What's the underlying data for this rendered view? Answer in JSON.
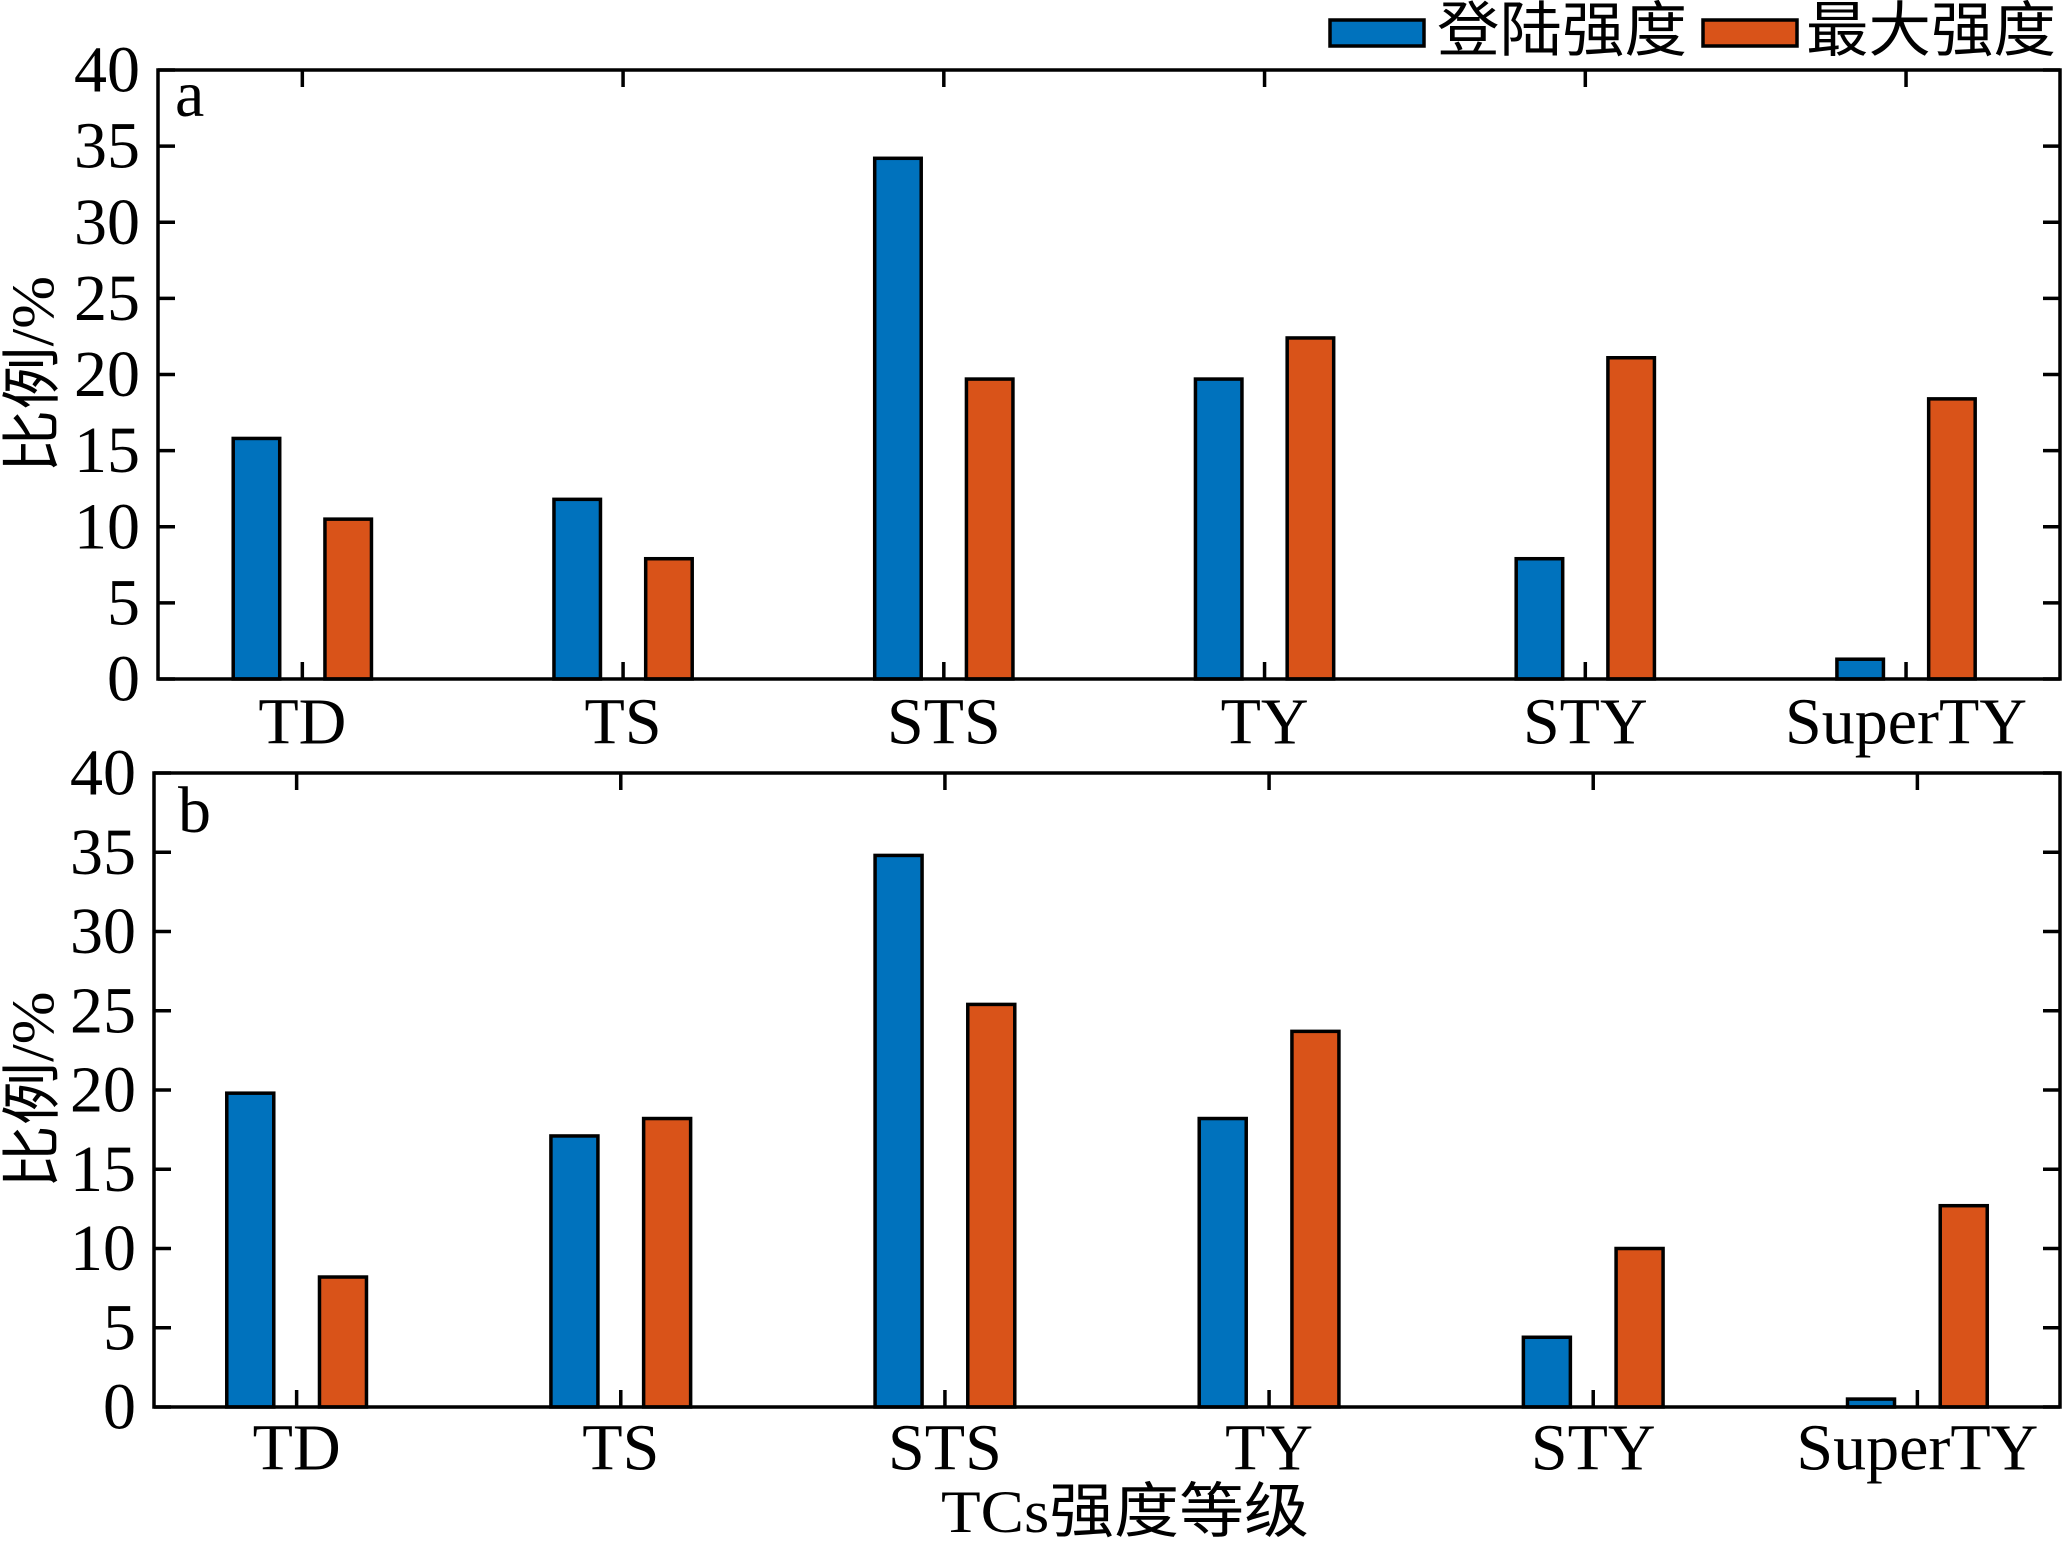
{
  "chart_data": [
    {
      "type": "bar",
      "panel_label": "a",
      "categories": [
        "TD",
        "TS",
        "STS",
        "TY",
        "STY",
        "SuperTY"
      ],
      "series": [
        {
          "name": "登陆强度",
          "color": "#0072BD",
          "values": [
            15.8,
            11.8,
            34.2,
            19.7,
            7.9,
            1.3
          ]
        },
        {
          "name": "最大强度",
          "color": "#D95319",
          "values": [
            10.5,
            7.9,
            19.7,
            22.4,
            21.1,
            18.4
          ]
        }
      ],
      "ylabel": "比例/%",
      "ylim": [
        0,
        40
      ],
      "yticks": [
        0,
        5,
        10,
        15,
        20,
        25,
        30,
        35,
        40
      ],
      "grid": false,
      "legend": "top-right"
    },
    {
      "type": "bar",
      "panel_label": "b",
      "categories": [
        "TD",
        "TS",
        "STS",
        "TY",
        "STY",
        "SuperTY"
      ],
      "series": [
        {
          "name": "登陆强度",
          "color": "#0072BD",
          "values": [
            19.8,
            17.1,
            34.8,
            18.2,
            4.4,
            0.5
          ]
        },
        {
          "name": "最大强度",
          "color": "#D95319",
          "values": [
            8.2,
            18.2,
            25.4,
            23.7,
            10.0,
            12.7
          ]
        }
      ],
      "ylabel": "比例/%",
      "xlabel": "TCs强度等级",
      "ylim": [
        0,
        40
      ],
      "yticks": [
        0,
        5,
        10,
        15,
        20,
        25,
        30,
        35,
        40
      ],
      "grid": false
    }
  ]
}
